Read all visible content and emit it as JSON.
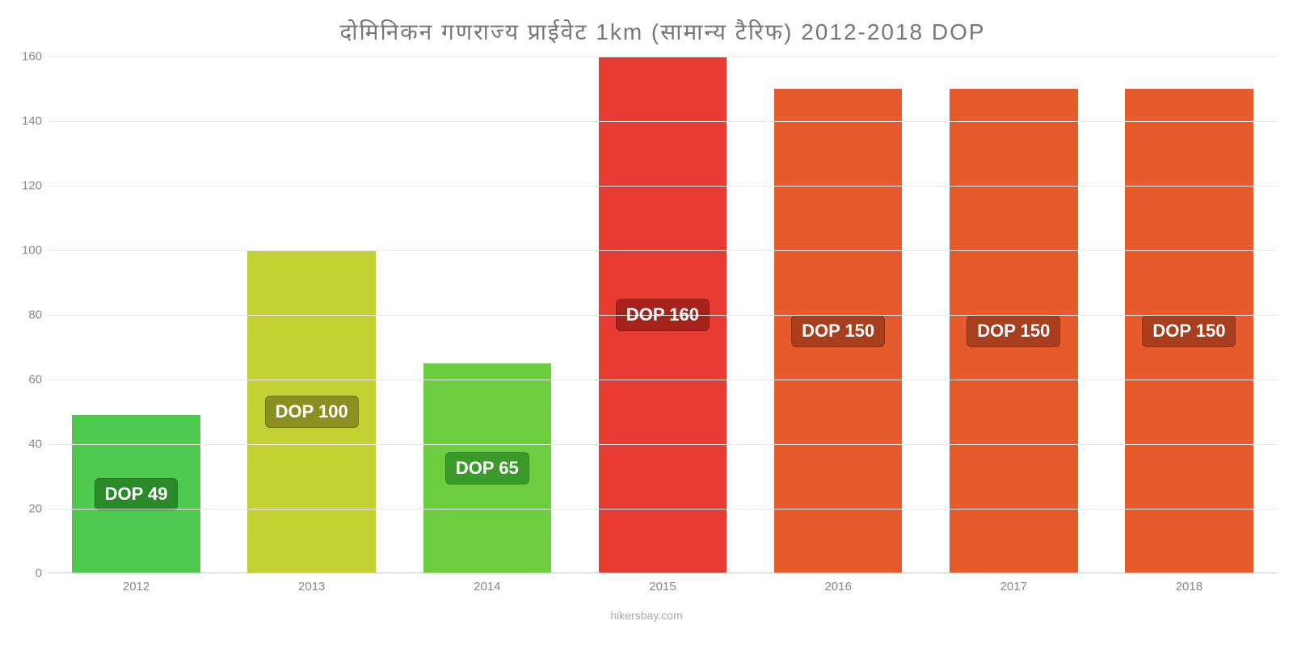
{
  "chart": {
    "type": "bar",
    "title": "दोमिनिकन    गणराज्य    प्राईवेट    1km (सामान्य    टैरिफ) 2012-2018 DOP",
    "title_color": "#777777",
    "title_fontsize": 28,
    "background_color": "#ffffff",
    "grid_color": "#e8e8e8",
    "axis_text_color": "#888888",
    "ylim": [
      0,
      160
    ],
    "ytick_step": 20,
    "yticks": [
      0,
      20,
      40,
      60,
      80,
      100,
      120,
      140,
      160
    ],
    "categories": [
      "2012",
      "2013",
      "2014",
      "2015",
      "2016",
      "2017",
      "2018"
    ],
    "values": [
      49,
      100,
      65,
      160,
      150,
      150,
      150
    ],
    "bar_colors": [
      "#4ec94e",
      "#c3d232",
      "#6cce3f",
      "#e83b33",
      "#e65a2c",
      "#e65a2c",
      "#e65a2c"
    ],
    "bar_width": 0.73,
    "value_labels": [
      "DOP 49",
      "DOP 100",
      "DOP 65",
      "DOP 160",
      "DOP 150",
      "DOP 150",
      "DOP 150"
    ],
    "value_label_bg": [
      "#2a8a2a",
      "#8a8f1f",
      "#3a9a2a",
      "#a8221c",
      "#a83e1e",
      "#a83e1e",
      "#a83e1e"
    ],
    "value_label_fontsize": 22,
    "attribution": "hikersbay.com",
    "attribution_color": "#aaaaaa"
  }
}
